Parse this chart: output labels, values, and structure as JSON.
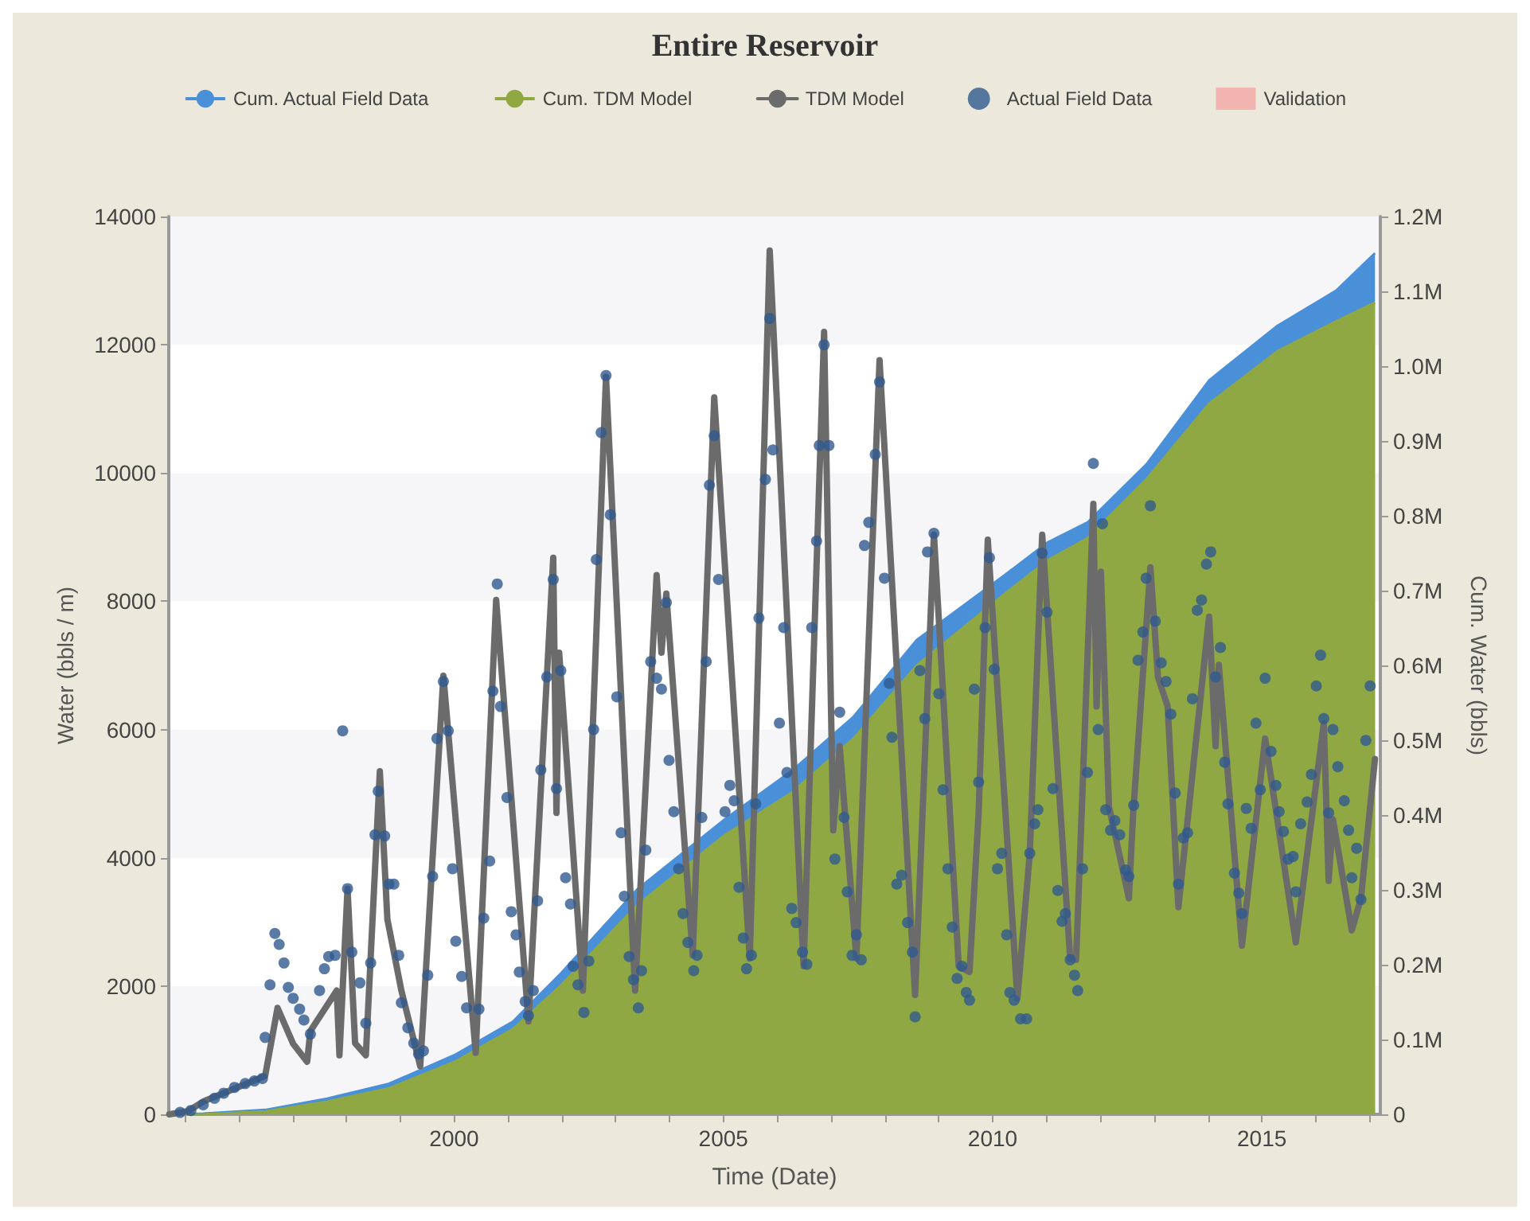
{
  "chart_data": {
    "type": "line",
    "title": "Entire Reservoir",
    "xlabel": "Time (Date)",
    "ylabel": "Water (bbls / m)",
    "y2label": "Cum. Water (bbls)",
    "legend": "top",
    "xlim": [
      1994.7,
      2017.2
    ],
    "xticks": [
      {
        "value": 1995,
        "label": null
      },
      {
        "value": 1996,
        "label": null
      },
      {
        "value": 1997,
        "label": null
      },
      {
        "value": 1998,
        "label": null
      },
      {
        "value": 1999,
        "label": null
      },
      2000,
      {
        "value": 2001,
        "label": null
      },
      {
        "value": 2002,
        "label": null
      },
      {
        "value": 2003,
        "label": null
      },
      {
        "value": 2004,
        "label": null
      },
      2005,
      {
        "value": 2006,
        "label": null
      },
      {
        "value": 2007,
        "label": null
      },
      {
        "value": 2008,
        "label": null
      },
      {
        "value": 2009,
        "label": null
      },
      2010,
      {
        "value": 2011,
        "label": null
      },
      {
        "value": 2012,
        "label": null
      },
      {
        "value": 2013,
        "label": null
      },
      {
        "value": 2014,
        "label": null
      },
      2015,
      {
        "value": 2016,
        "label": null
      },
      {
        "value": 2017,
        "label": null
      }
    ],
    "ylim": [
      0,
      14000
    ],
    "yticks": [
      0,
      2000,
      4000,
      6000,
      8000,
      10000,
      12000,
      14000
    ],
    "y2lim": [
      0,
      1200000
    ],
    "y2ticks": [
      0,
      {
        "value": 100000,
        "label": "0.1M"
      },
      {
        "value": 200000,
        "label": "0.2M"
      },
      {
        "value": 300000,
        "label": "0.3M"
      },
      {
        "value": 400000,
        "label": "0.4M"
      },
      {
        "value": 500000,
        "label": "0.5M"
      },
      {
        "value": 600000,
        "label": "0.6M"
      },
      {
        "value": 700000,
        "label": "0.7M"
      },
      {
        "value": 800000,
        "label": "0.8M"
      },
      {
        "value": 900000,
        "label": "0.9M"
      },
      {
        "value": 1000000,
        "label": "1.0M"
      },
      {
        "value": 1100000,
        "label": "1.1M"
      },
      {
        "value": 1200000,
        "label": "1.2M"
      }
    ],
    "series": [
      {
        "name": "Cum. Actual Field Data",
        "type": "area",
        "axis": "y2",
        "color": "#4a90d9",
        "x": [
          1994.7,
          1995.34,
          1996.49,
          1997.64,
          1998.79,
          2000,
          2001.09,
          2001.95,
          2003.39,
          2005,
          2006.27,
          2007.41,
          2008.59,
          2010.23,
          2011.01,
          2011.76,
          2012.87,
          2014.02,
          2015.29,
          2016.38,
          2017.1
        ],
        "values": [
          0,
          1000,
          6000,
          21000,
          41000,
          79000,
          124000,
          186000,
          300000,
          393000,
          459000,
          531000,
          634000,
          721000,
          764000,
          791000,
          870000,
          981000,
          1054000,
          1101000,
          1151000
        ]
      },
      {
        "name": "Cum. TDM Model",
        "type": "area",
        "axis": "y2",
        "color": "#8fa843",
        "x": [
          1994.7,
          1995.34,
          1996.49,
          1997.64,
          1998.79,
          2000,
          2001.09,
          2001.95,
          2003.39,
          2005,
          2006.27,
          2007.41,
          2008.59,
          2010.23,
          2011.01,
          2011.76,
          2012.87,
          2014.02,
          2015.29,
          2016.38,
          2017.1
        ],
        "values": [
          0,
          0,
          4000,
          17000,
          35000,
          70000,
          114000,
          170000,
          279000,
          372000,
          430000,
          502000,
          600000,
          696000,
          740000,
          770000,
          850000,
          950000,
          1020000,
          1060000,
          1085000
        ]
      },
      {
        "name": "TDM Model",
        "type": "line",
        "color": "#6b6b6b",
        "line_style": "solid",
        "x": [
          1994.71,
          1995.06,
          1995.34,
          1995.92,
          1996.35,
          1996.49,
          1996.72,
          1997.01,
          1997.27,
          1997.33,
          1997.82,
          1997.87,
          1998.02,
          1998.16,
          1998.36,
          1998.62,
          1998.76,
          1999.02,
          1999.37,
          1999.8,
          2000.4,
          2000.78,
          2001.38,
          2001.84,
          2001.9,
          2001.95,
          2002.39,
          2002.82,
          2003.36,
          2003.76,
          2003.85,
          2003.94,
          2004.43,
          2004.83,
          2005.49,
          2005.86,
          2006.49,
          2006.87,
          2007.04,
          2007.16,
          2007.47,
          2007.9,
          2008.56,
          2008.91,
          2009.37,
          2009.57,
          2009.74,
          2009.91,
          2010.46,
          2010.69,
          2010.92,
          2011.44,
          2011.55,
          2011.87,
          2011.93,
          2012.01,
          2012.16,
          2012.53,
          2012.61,
          2012.93,
          2013.07,
          2013.25,
          2013.45,
          2014.02,
          2014.14,
          2014.2,
          2014.63,
          2015.06,
          2015.63,
          2016.15,
          2016.24,
          2016.32,
          2016.67,
          2016.84,
          2017.1
        ],
        "values": [
          0,
          50,
          200,
          400,
          550,
          600,
          1660,
          1100,
          820,
          1300,
          1930,
          920,
          3520,
          1110,
          920,
          5350,
          3040,
          1930,
          750,
          6840,
          960,
          8020,
          1450,
          8680,
          4700,
          7200,
          1930,
          11500,
          1930,
          8410,
          7200,
          8120,
          2480,
          11180,
          2430,
          13470,
          2310,
          12200,
          4430,
          5740,
          2430,
          11760,
          1860,
          9040,
          2310,
          2220,
          4700,
          8960,
          1810,
          4070,
          9040,
          2430,
          2410,
          9520,
          6360,
          8460,
          4800,
          3370,
          4700,
          8530,
          6820,
          6360,
          3230,
          7760,
          5740,
          7010,
          2630,
          5860,
          2680,
          6100,
          3640,
          4600,
          2870,
          3370,
          5540
        ]
      },
      {
        "name": "Actual Field Data",
        "type": "scatter",
        "marker": "circle",
        "color": "#2f5a8e",
        "x": [
          1994.91,
          1995.11,
          1995.34,
          1995.55,
          1995.72,
          1995.92,
          1996.12,
          1996.29,
          1996.44,
          1996.49,
          1996.58,
          1996.67,
          1996.75,
          1996.84,
          1996.92,
          1997.01,
          1997.13,
          1997.21,
          1997.33,
          1997.5,
          1997.59,
          1997.67,
          1997.79,
          1997.93,
          1998.02,
          1998.1,
          1998.25,
          1998.36,
          1998.45,
          1998.53,
          1998.59,
          1998.71,
          1998.79,
          1998.88,
          1998.97,
          1999.02,
          1999.14,
          1999.25,
          1999.34,
          1999.43,
          1999.51,
          1999.6,
          1999.68,
          1999.8,
          1999.89,
          1999.97,
          2000.03,
          2000.14,
          2000.23,
          2000.46,
          2000.55,
          2000.66,
          2000.72,
          2000.8,
          2000.86,
          2000.98,
          2001.06,
          2001.15,
          2001.21,
          2001.32,
          2001.38,
          2001.47,
          2001.55,
          2001.61,
          2001.72,
          2001.84,
          2001.9,
          2001.98,
          2002.07,
          2002.16,
          2002.21,
          2002.3,
          2002.41,
          2002.5,
          2002.59,
          2002.64,
          2002.73,
          2002.82,
          2002.9,
          2003.02,
          2003.1,
          2003.16,
          2003.25,
          2003.33,
          2003.42,
          2003.48,
          2003.56,
          2003.65,
          2003.76,
          2003.85,
          2003.94,
          2003.99,
          2004.08,
          2004.17,
          2004.25,
          2004.34,
          2004.45,
          2004.51,
          2004.6,
          2004.68,
          2004.74,
          2004.83,
          2004.91,
          2005.03,
          2005.12,
          2005.2,
          2005.29,
          2005.37,
          2005.43,
          2005.52,
          2005.6,
          2005.66,
          2005.78,
          2005.86,
          2005.92,
          2006.04,
          2006.12,
          2006.18,
          2006.27,
          2006.35,
          2006.47,
          2006.55,
          2006.64,
          2006.73,
          2006.78,
          2006.87,
          2006.96,
          2007.07,
          2007.16,
          2007.24,
          2007.3,
          2007.39,
          2007.47,
          2007.56,
          2007.62,
          2007.7,
          2007.82,
          2007.9,
          2007.99,
          2008.08,
          2008.13,
          2008.22,
          2008.31,
          2008.42,
          2008.51,
          2008.56,
          2008.65,
          2008.74,
          2008.79,
          2008.91,
          2009,
          2009.08,
          2009.17,
          2009.25,
          2009.34,
          2009.43,
          2009.51,
          2009.57,
          2009.66,
          2009.74,
          2009.86,
          2009.94,
          2010.03,
          2010.09,
          2010.17,
          2010.26,
          2010.32,
          2010.4,
          2010.52,
          2010.63,
          2010.69,
          2010.78,
          2010.84,
          2010.92,
          2011.01,
          2011.12,
          2011.21,
          2011.29,
          2011.35,
          2011.44,
          2011.52,
          2011.58,
          2011.67,
          2011.76,
          2011.87,
          2011.96,
          2012.04,
          2012.1,
          2012.19,
          2012.27,
          2012.36,
          2012.47,
          2012.53,
          2012.62,
          2012.7,
          2012.79,
          2012.85,
          2012.93,
          2013.02,
          2013.13,
          2013.22,
          2013.31,
          2013.39,
          2013.45,
          2013.54,
          2013.62,
          2013.71,
          2013.8,
          2013.88,
          2013.97,
          2014.05,
          2014.14,
          2014.23,
          2014.31,
          2014.37,
          2014.49,
          2014.57,
          2014.63,
          2014.71,
          2014.8,
          2014.89,
          2014.97,
          2015.06,
          2015.17,
          2015.26,
          2015.32,
          2015.4,
          2015.49,
          2015.58,
          2015.63,
          2015.72,
          2015.84,
          2015.92,
          2016.01,
          2016.09,
          2016.15,
          2016.24,
          2016.32,
          2016.41,
          2016.53,
          2016.61,
          2016.67,
          2016.76,
          2016.84,
          2016.93,
          2017.01
        ],
        "values": [
          30,
          60,
          150,
          250,
          330,
          420,
          480,
          520,
          560,
          1200,
          2020,
          2820,
          2650,
          2360,
          1980,
          1810,
          1640,
          1470,
          1250,
          1930,
          2270,
          2460,
          2480,
          5980,
          3520,
          2530,
          2050,
          1420,
          2360,
          4360,
          5040,
          4340,
          3590,
          3590,
          2480,
          1740,
          1350,
          1110,
          940,
          990,
          2170,
          3710,
          5860,
          6750,
          5980,
          3830,
          2700,
          2150,
          1660,
          1640,
          3060,
          3950,
          6600,
          8270,
          6360,
          4940,
          3160,
          2800,
          2220,
          1760,
          1540,
          1930,
          3330,
          5370,
          6820,
          8340,
          5080,
          6920,
          3690,
          3280,
          2310,
          2020,
          1590,
          2390,
          6000,
          8650,
          10630,
          11520,
          9350,
          6510,
          4390,
          3400,
          2460,
          2100,
          1660,
          2240,
          4120,
          7060,
          6800,
          6630,
          7980,
          5520,
          4720,
          3830,
          3130,
          2680,
          2240,
          2480,
          4630,
          7060,
          9810,
          10580,
          8340,
          4720,
          5130,
          4890,
          3540,
          2750,
          2270,
          2480,
          4840,
          7740,
          9900,
          12410,
          10360,
          6100,
          7590,
          5330,
          3210,
          2990,
          2530,
          2340,
          7590,
          8940,
          10430,
          12000,
          10430,
          3980,
          6270,
          4630,
          3470,
          2480,
          2800,
          2410,
          8870,
          9230,
          10290,
          11420,
          8360,
          6720,
          5880,
          3590,
          3730,
          2990,
          2530,
          1520,
          6920,
          6170,
          8770,
          9060,
          6560,
          5060,
          3830,
          2920,
          2120,
          2310,
          1900,
          1780,
          6630,
          5180,
          7590,
          8680,
          6940,
          3830,
          4070,
          2800,
          1900,
          1780,
          1490,
          1490,
          4070,
          4530,
          4750,
          8750,
          7830,
          5080,
          3490,
          3010,
          3130,
          2410,
          2170,
          1930,
          3830,
          5330,
          10150,
          6000,
          9210,
          4750,
          4430,
          4580,
          4360,
          3810,
          3710,
          4820,
          7080,
          7520,
          8360,
          9490,
          7690,
          7040,
          6750,
          6240,
          5010,
          3590,
          4310,
          4390,
          6480,
          7860,
          8020,
          8580,
          8770,
          6820,
          7280,
          5490,
          4840,
          3760,
          3450,
          3130,
          4770,
          4460,
          6100,
          5060,
          6800,
          5660,
          5130,
          4720,
          4410,
          3980,
          4020,
          3470,
          4530,
          4870,
          5300,
          6680,
          7160,
          6170,
          4700,
          6000,
          5420,
          4890,
          4430,
          3690,
          4150,
          3350,
          5830,
          6680
        ]
      },
      {
        "name": "Validation",
        "type": "scatter",
        "marker": "square",
        "color": "#f4a6a6"
      }
    ]
  }
}
